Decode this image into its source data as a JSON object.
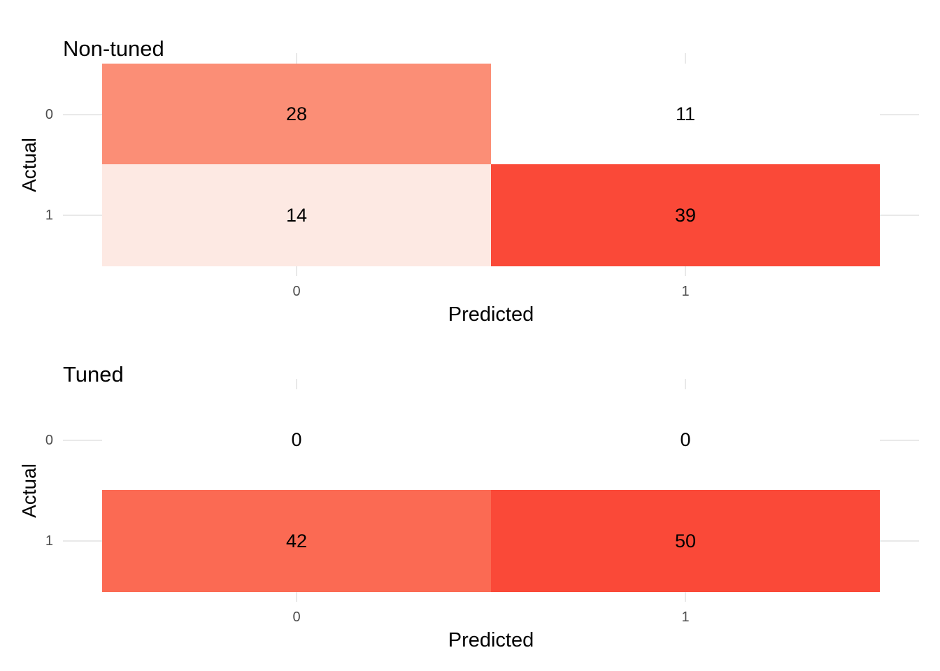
{
  "colors": {
    "background": "#ffffff",
    "grid": "#e9e9e9",
    "tick_text": "#4d4d4d",
    "text": "#000000"
  },
  "chart_data": [
    {
      "type": "heatmap",
      "title": "Non-tuned",
      "xlabel": "Predicted",
      "ylabel": "Actual",
      "x_categories": [
        "0",
        "1"
      ],
      "y_categories": [
        "0",
        "1"
      ],
      "legend": "none",
      "grid": "minimal-stubs",
      "cells": [
        {
          "actual": "0",
          "predicted": "0",
          "value": "28",
          "fill": "#fb8e76"
        },
        {
          "actual": "0",
          "predicted": "1",
          "value": "11",
          "fill": "#ffffff"
        },
        {
          "actual": "1",
          "predicted": "0",
          "value": "14",
          "fill": "#fde9e3"
        },
        {
          "actual": "1",
          "predicted": "1",
          "value": "39",
          "fill": "#fa4938"
        }
      ]
    },
    {
      "type": "heatmap",
      "title": "Tuned",
      "xlabel": "Predicted",
      "ylabel": "Actual",
      "x_categories": [
        "0",
        "1"
      ],
      "y_categories": [
        "0",
        "1"
      ],
      "legend": "none",
      "grid": "minimal-stubs",
      "cells": [
        {
          "actual": "0",
          "predicted": "0",
          "value": "0",
          "fill": "#ffffff"
        },
        {
          "actual": "0",
          "predicted": "1",
          "value": "0",
          "fill": "#ffffff"
        },
        {
          "actual": "1",
          "predicted": "0",
          "value": "42",
          "fill": "#fb6a53"
        },
        {
          "actual": "1",
          "predicted": "1",
          "value": "50",
          "fill": "#fa4938"
        }
      ]
    }
  ]
}
